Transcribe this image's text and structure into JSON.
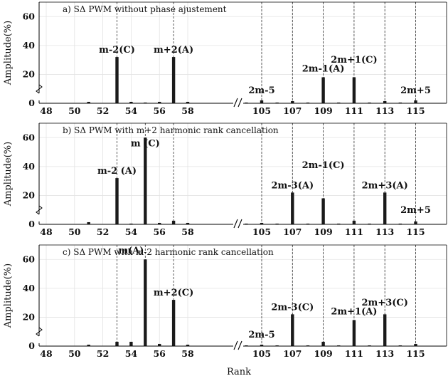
{
  "figure": {
    "xlabel": "Rank"
  },
  "chart_data": [
    {
      "type": "bar",
      "title": "a) SΔ PWM without phase ajustement",
      "ylabel": "Amplitude(%)",
      "ylim": [
        0,
        70
      ],
      "yticks": [
        0,
        20,
        40,
        60
      ],
      "xticks": [
        48,
        50,
        52,
        54,
        56,
        58,
        105,
        107,
        109,
        111,
        113,
        115
      ],
      "x_break": "58 // 105",
      "x": [
        51,
        53,
        54,
        55,
        56,
        57,
        58,
        104,
        105,
        106,
        107,
        108,
        109,
        110,
        111,
        112,
        113,
        114,
        115
      ],
      "values": [
        1,
        32,
        1,
        0.5,
        1,
        32,
        1,
        0.5,
        2,
        0.5,
        1.5,
        0.5,
        18,
        0.5,
        18,
        0.5,
        1.5,
        0.5,
        2
      ],
      "dashed_lines": [
        53,
        57,
        105,
        107,
        109,
        111,
        113,
        115
      ],
      "annotations": [
        {
          "text": "m-2(C)",
          "x": 53,
          "y": 35
        },
        {
          "text": "m+2(A)",
          "x": 57,
          "y": 35
        },
        {
          "text": "2m-5",
          "x": 105,
          "y": 7
        },
        {
          "text": "2m-1(A)",
          "x": 109,
          "y": 22
        },
        {
          "text": "2m+1(C)",
          "x": 111,
          "y": 28
        },
        {
          "text": "2m+5",
          "x": 115,
          "y": 7
        }
      ]
    },
    {
      "type": "bar",
      "title": "b) SΔ PWM with m+2 harmonic rank cancellation",
      "ylabel": "Amplitude(%)",
      "ylim": [
        0,
        70
      ],
      "yticks": [
        0,
        20,
        40,
        60
      ],
      "xticks": [
        48,
        50,
        52,
        54,
        56,
        58,
        105,
        107,
        109,
        111,
        113,
        115
      ],
      "x_break": "58 // 105",
      "x": [
        51,
        53,
        54,
        55,
        56,
        57,
        58,
        104,
        105,
        106,
        107,
        108,
        109,
        110,
        111,
        112,
        113,
        114,
        115
      ],
      "values": [
        1.5,
        32,
        0.5,
        60,
        1,
        2.5,
        1,
        0.5,
        1,
        0.5,
        22,
        0.5,
        18,
        0.5,
        2.5,
        0.5,
        22,
        0.5,
        2
      ],
      "dashed_lines": [
        53,
        55,
        57,
        105,
        107,
        109,
        111,
        113,
        115
      ],
      "annotations": [
        {
          "text": "m-2 (A)",
          "x": 53,
          "y": 35
        },
        {
          "text": "m (C)",
          "x": 55,
          "y": 54
        },
        {
          "text": "2m-1(C)",
          "x": 109,
          "y": 39
        },
        {
          "text": "2m-3(A)",
          "x": 107,
          "y": 25
        },
        {
          "text": "2m+3(A)",
          "x": 113,
          "y": 25
        },
        {
          "text": "2m+5",
          "x": 115,
          "y": 8
        }
      ]
    },
    {
      "type": "bar",
      "title": "c) SΔ PWM with m-2 harmonic rank cancellation",
      "ylabel": "Amplitude(%)",
      "ylim": [
        0,
        70
      ],
      "yticks": [
        0,
        20,
        40,
        60
      ],
      "xticks": [
        48,
        50,
        52,
        54,
        56,
        58,
        105,
        107,
        109,
        111,
        113,
        115
      ],
      "x_break": "58 // 105",
      "x": [
        51,
        53,
        54,
        55,
        56,
        57,
        58,
        104,
        105,
        106,
        107,
        108,
        109,
        110,
        111,
        112,
        113,
        114,
        115
      ],
      "values": [
        1,
        3,
        3,
        60,
        1.5,
        32,
        1,
        0.5,
        1,
        0.5,
        22,
        0.5,
        3,
        0.5,
        18,
        0.5,
        22,
        0.5,
        1.5
      ],
      "dashed_lines": [
        53,
        55,
        57,
        105,
        107,
        109,
        111,
        113,
        115
      ],
      "annotations": [
        {
          "text": "m(A)",
          "x": 54,
          "y": 64
        },
        {
          "text": "m+2(C)",
          "x": 57,
          "y": 35
        },
        {
          "text": "2m-5",
          "x": 105,
          "y": 6
        },
        {
          "text": "2m-3(C)",
          "x": 107,
          "y": 25
        },
        {
          "text": "2m+1(A)",
          "x": 111,
          "y": 22
        },
        {
          "text": "2m+3(C)",
          "x": 113,
          "y": 28
        }
      ]
    }
  ]
}
